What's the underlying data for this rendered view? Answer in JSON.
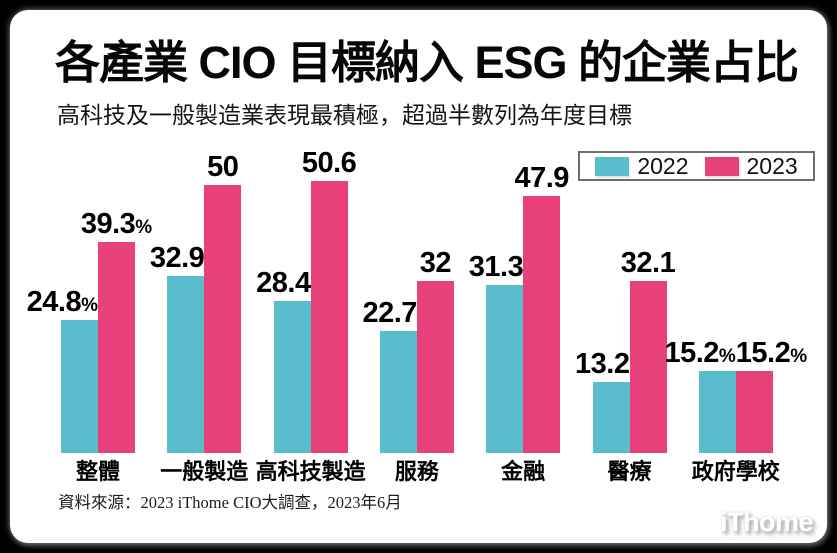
{
  "header": {
    "title": "各產業 CIO 目標納入 ESG 的企業占比",
    "subtitle": "高科技及一般製造業表現最積極，超過半數列為年度目標"
  },
  "chart_data": {
    "type": "bar",
    "title": "各產業 CIO 目標納入 ESG 的企業占比",
    "subtitle": "高科技及一般製造業表現最積極，超過半數列為年度目標",
    "categories": [
      "整體",
      "一般製造",
      "高科技製造",
      "服務",
      "金融",
      "醫療",
      "政府學校"
    ],
    "series": [
      {
        "name": "2022",
        "color": "#5abdce",
        "values": [
          24.8,
          32.9,
          28.4,
          22.7,
          31.3,
          13.2,
          15.2
        ]
      },
      {
        "name": "2023",
        "color": "#e8407b",
        "values": [
          39.3,
          50,
          50.6,
          32,
          47.9,
          32.1,
          15.2
        ]
      }
    ],
    "unit": "%",
    "percent_suffix_group_indices": [
      0,
      6
    ],
    "ylim": [
      0,
      55
    ],
    "grid": false,
    "legend_position": "top-right",
    "value_labels_position": "above bars, bold"
  },
  "legend": {
    "items": [
      {
        "label": "2022",
        "color": "#5abdce"
      },
      {
        "label": "2023",
        "color": "#e8407b"
      }
    ]
  },
  "footer": {
    "source": "資料來源：2023 iThome CIO大調查，2023年6月",
    "logo": "iThome"
  }
}
